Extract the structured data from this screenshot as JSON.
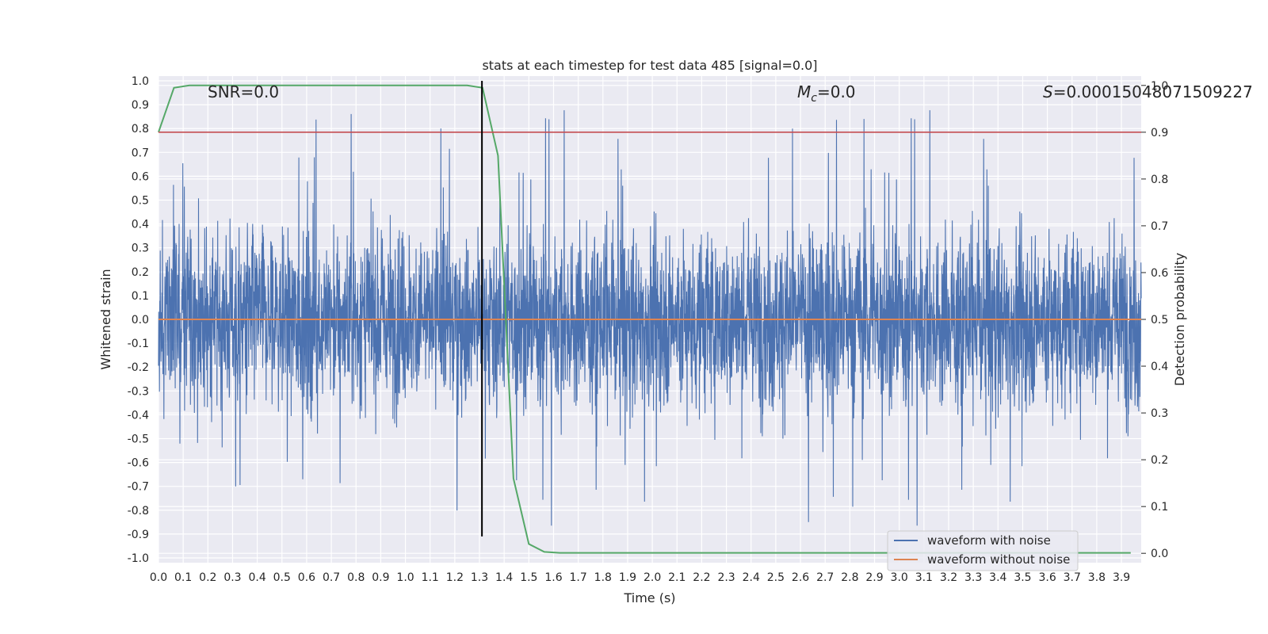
{
  "chart_data": {
    "type": "line",
    "title": "stats at each timestep for test data 485 [signal=0.0]",
    "xlabel": "Time (s)",
    "ylabel": "Whitened strain",
    "y2label": "Detection probability",
    "xlim": [
      0.0,
      3.98
    ],
    "ylim": [
      -1.02,
      1.02
    ],
    "y2lim": [
      -0.02,
      1.02
    ],
    "x_ticks": [
      "0.0",
      "0.1",
      "0.2",
      "0.3",
      "0.4",
      "0.5",
      "0.6",
      "0.7",
      "0.8",
      "0.9",
      "1.0",
      "1.1",
      "1.2",
      "1.3",
      "1.4",
      "1.5",
      "1.6",
      "1.7",
      "1.8",
      "1.9",
      "2.0",
      "2.1",
      "2.2",
      "2.3",
      "2.4",
      "2.5",
      "2.6",
      "2.7",
      "2.8",
      "2.9",
      "3.0",
      "3.1",
      "3.2",
      "3.3",
      "3.4",
      "3.5",
      "3.6",
      "3.7",
      "3.8",
      "3.9"
    ],
    "y_ticks": [
      "-1.0",
      "-0.9",
      "-0.8",
      "-0.7",
      "-0.6",
      "-0.5",
      "-0.4",
      "-0.3",
      "-0.2",
      "-0.1",
      "0.0",
      "0.1",
      "0.2",
      "0.3",
      "0.4",
      "0.5",
      "0.6",
      "0.7",
      "0.8",
      "0.9",
      "1.0"
    ],
    "y2_ticks": [
      "0.0",
      "0.1",
      "0.2",
      "0.3",
      "0.4",
      "0.5",
      "0.6",
      "0.7",
      "0.8",
      "0.9",
      "1.0"
    ],
    "grid": true,
    "legend_position": "lower-right",
    "annotations": {
      "snr": "SNR=0.0",
      "mc_symbol": "M",
      "mc_sub": "c",
      "mc_value": "=0.0",
      "s_symbol": "S",
      "s_value": "=0.00015048071509227"
    },
    "series": [
      {
        "name": "waveform with noise",
        "color": "#4c72b0",
        "axis": "left",
        "style": "noise",
        "description_range": [
          -0.9,
          1.0
        ],
        "sample_count": 4000
      },
      {
        "name": "waveform without noise",
        "color": "#dd8452",
        "axis": "left",
        "x": [
          0.0,
          3.98
        ],
        "y": [
          0.0,
          0.0
        ]
      },
      {
        "color": "#55a868",
        "axis": "right",
        "x": [
          0.0,
          0.0625,
          0.125,
          0.1875,
          0.25,
          0.3125,
          0.375,
          0.4375,
          0.5,
          0.5625,
          0.625,
          0.6875,
          0.75,
          0.8125,
          0.875,
          0.9375,
          1.0,
          1.0625,
          1.125,
          1.1875,
          1.25,
          1.3125,
          1.375,
          1.4375,
          1.5,
          1.5625,
          1.625,
          1.6875,
          1.75,
          1.8125,
          1.875,
          1.9375,
          2.0,
          2.0625,
          2.125,
          2.1875,
          2.25,
          2.3125,
          2.375,
          2.4375,
          2.5,
          2.5625,
          2.625,
          2.6875,
          2.75,
          2.8125,
          2.875,
          2.9375,
          3.0,
          3.0625,
          3.125,
          3.1875,
          3.25,
          3.3125,
          3.375,
          3.4375,
          3.5,
          3.5625,
          3.625,
          3.6875,
          3.75,
          3.8125,
          3.875,
          3.9375
        ],
        "y": [
          0.9,
          0.995,
          1.0,
          1.0,
          1.0,
          1.0,
          1.0,
          1.0,
          1.0,
          1.0,
          1.0,
          1.0,
          1.0,
          1.0,
          1.0,
          1.0,
          1.0,
          1.0,
          1.0,
          1.0,
          1.0,
          0.995,
          0.85,
          0.16,
          0.02,
          0.003,
          0.001,
          0.001,
          0.001,
          0.001,
          0.001,
          0.001,
          0.001,
          0.001,
          0.001,
          0.001,
          0.001,
          0.001,
          0.001,
          0.001,
          0.001,
          0.001,
          0.001,
          0.001,
          0.001,
          0.001,
          0.001,
          0.001,
          0.001,
          0.001,
          0.001,
          0.001,
          0.001,
          0.001,
          0.001,
          0.001,
          0.001,
          0.001,
          0.001,
          0.001,
          0.001,
          0.001,
          0.001,
          0.001
        ]
      },
      {
        "color": "#c44e52",
        "axis": "right",
        "x": [
          0.0,
          3.98
        ],
        "y": [
          0.9,
          0.9
        ]
      },
      {
        "color": "#000000",
        "axis": "left",
        "type": "vline",
        "x": [
          1.31,
          1.31
        ],
        "y": [
          -0.91,
          1.0
        ]
      }
    ]
  }
}
